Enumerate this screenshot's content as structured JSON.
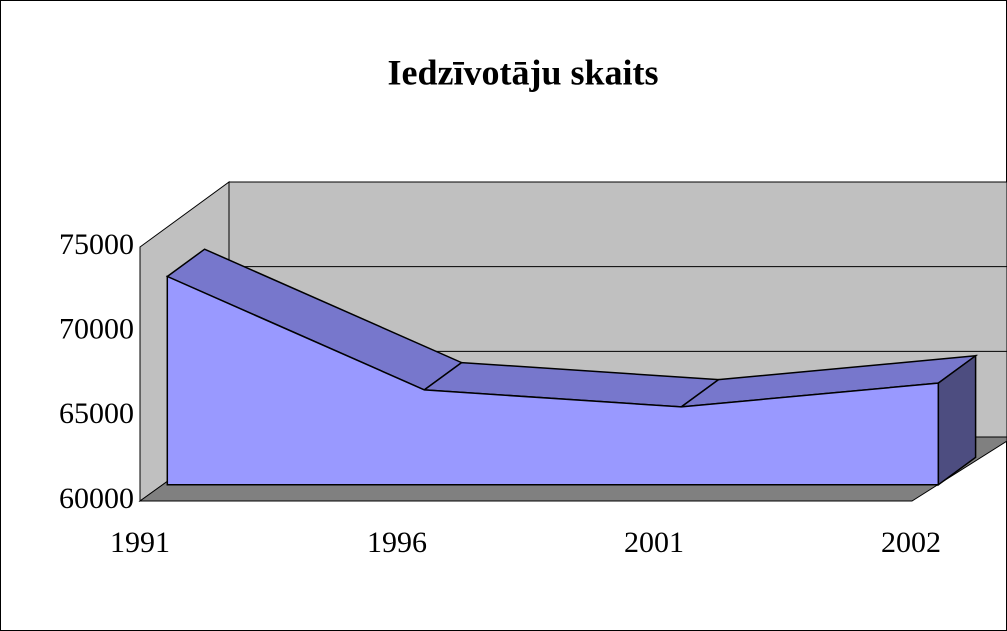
{
  "chart_data": {
    "type": "area3d",
    "title": "Iedzīvotāju skaits",
    "categories": [
      "1991",
      "1996",
      "2001",
      "2002"
    ],
    "values": [
      72300,
      65600,
      64600,
      66000
    ],
    "color": "#9999ff",
    "ylim": [
      60000,
      75000
    ],
    "yticks": [
      60000,
      65000,
      70000,
      75000
    ],
    "grid": true
  }
}
